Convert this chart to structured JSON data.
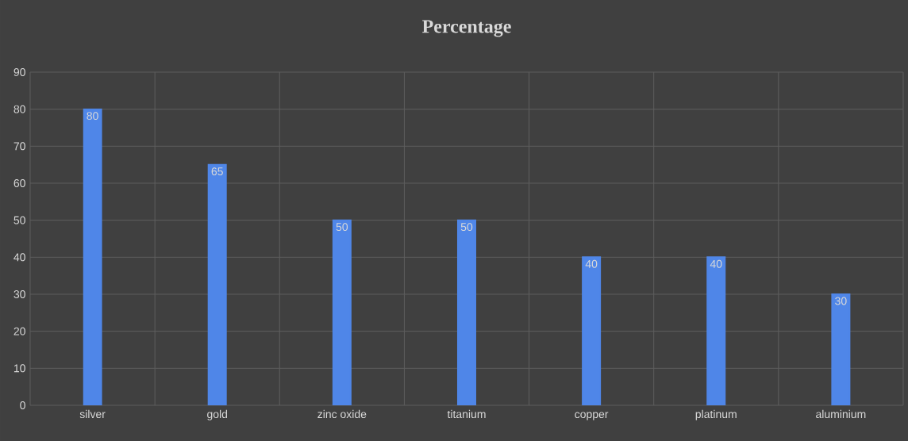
{
  "chart_data": {
    "type": "bar",
    "title": "Percentage",
    "categories": [
      "silver",
      "gold",
      "zinc oxide",
      "titanium",
      "copper",
      "platinum",
      "aluminium"
    ],
    "values": [
      80,
      65,
      50,
      50,
      40,
      40,
      30
    ],
    "color": "#4f86e8",
    "ylim": [
      0,
      90
    ],
    "yticks": [
      0,
      10,
      20,
      30,
      40,
      50,
      60,
      70,
      80,
      90
    ],
    "grid": true,
    "data_labels": true
  }
}
